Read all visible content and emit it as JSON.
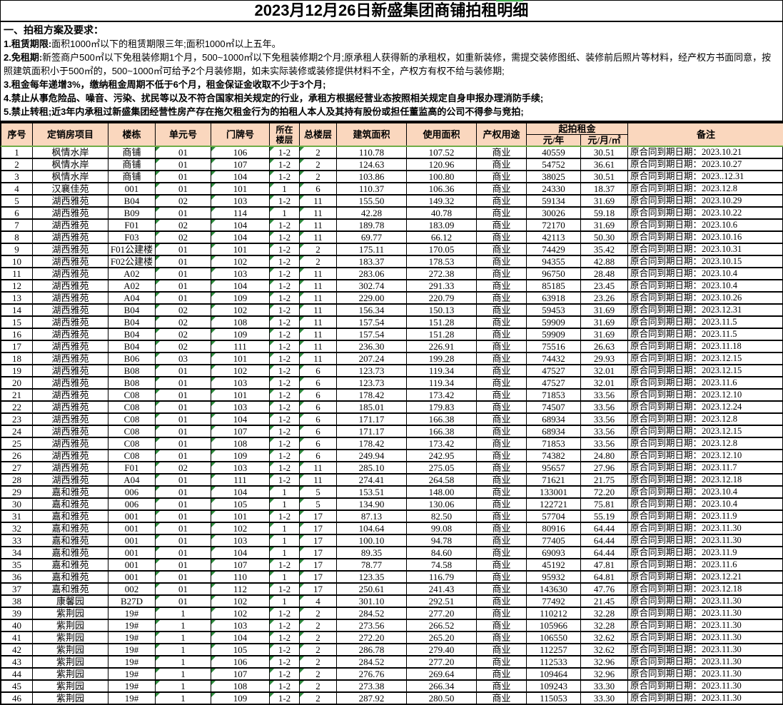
{
  "title": "2023月12月26日新盛集团商铺拍租明细",
  "notes": {
    "heading": "一、拍租方案及要求：",
    "items": [
      {
        "bold": "1.租赁期限:",
        "text": "面积1000㎡以下的租赁期限三年;面积1000㎡以上五年。"
      },
      {
        "bold": "2.免租期:",
        "text": "新签商户500㎡以下免租装修期1个月，500~1000㎡以下免租装修期2个月;原承租人获得新的承租权，如重新装修，需提交装修图纸、装修前后照片等材料，经产权方书面同意，按照建筑面积小于500㎡的，500~1000㎡可给予2个月装修期，如未实际装修或装修提供材料不全，产权方有权不给与装修期;"
      },
      {
        "bold": "3.租金每年递增3%，缴纳租金周期不低于6个月，租金保证金收取不少于3个月;",
        "text": ""
      },
      {
        "bold": "4.禁止从事危险品、噪音、污染、扰民等以及不符合国家相关规定的行业，承租方根据经营业态按照相关规定自身申报办理消防手续;",
        "text": ""
      },
      {
        "bold": "5.禁止转租;近3年内承租过新盛集团经营性房产存在拖欠租金行为的拍租人本人及其持有股份或担任董监高的公司不得参与竞拍;",
        "text": ""
      }
    ]
  },
  "table": {
    "group_header": "起拍租金",
    "columns": [
      "序号",
      "定销房项目",
      "楼栋",
      "单元号",
      "门牌号",
      "所在楼层",
      "总楼层",
      "建筑面积",
      "使用面积",
      "产权用途",
      "元/年",
      "元/月/㎡",
      "备注"
    ],
    "col_keys": [
      "index",
      "project",
      "building",
      "unit",
      "door",
      "floor",
      "total-floors",
      "build-area",
      "usable-area",
      "property-use",
      "rent-per-year",
      "rent-per-month-sqm",
      "remark"
    ],
    "rows": [
      [
        "1",
        "枫情水岸",
        "商铺",
        "01",
        "106",
        "1-2",
        "2",
        "110.78",
        "107.52",
        "商业",
        "40559",
        "30.51",
        "原合同到期日期：2023.10.21"
      ],
      [
        "2",
        "枫情水岸",
        "商铺",
        "01",
        "107",
        "1-2",
        "2",
        "124.63",
        "120.96",
        "商业",
        "54752",
        "36.61",
        "原合同到期日期：2023.10.27"
      ],
      [
        "3",
        "枫情水岸",
        "商铺",
        "01",
        "104",
        "1-2",
        "2",
        "103.86",
        "100.80",
        "商业",
        "38025",
        "30.51",
        "原合同到期日期：2023..12.31"
      ],
      [
        "4",
        "汉襄佳苑",
        "001",
        "01",
        "101",
        "1",
        "6",
        "110.37",
        "106.36",
        "商业",
        "24330",
        "18.37",
        "原合同到期日期：2023.12.8"
      ],
      [
        "5",
        "湖西雅苑",
        "B04",
        "02",
        "103",
        "1-2",
        "11",
        "155.50",
        "149.32",
        "商业",
        "59134",
        "31.69",
        "原合同到期日期：2023.10.29"
      ],
      [
        "6",
        "湖西雅苑",
        "B09",
        "01",
        "114",
        "1",
        "11",
        "42.28",
        "40.78",
        "商业",
        "30026",
        "59.18",
        "原合同到期日期：2023.10.22"
      ],
      [
        "7",
        "湖西雅苑",
        "F01",
        "02",
        "104",
        "1-2",
        "11",
        "189.78",
        "183.09",
        "商业",
        "72170",
        "31.69",
        "原合同到期日期：2023.10.6"
      ],
      [
        "8",
        "湖西雅苑",
        "F03",
        "02",
        "104",
        "1-2",
        "11",
        "69.77",
        "66.12",
        "商业",
        "42113",
        "50.30",
        "原合同到期日期：2023.10.16"
      ],
      [
        "9",
        "湖西雅苑",
        "F01公建楼",
        "01",
        "101",
        "1-2",
        "2",
        "175.11",
        "170.05",
        "商业",
        "74429",
        "35.42",
        "原合同到期日期：2023.10.31"
      ],
      [
        "10",
        "湖西雅苑",
        "F02公建楼",
        "01",
        "102",
        "1-2",
        "2",
        "183.37",
        "178.53",
        "商业",
        "94355",
        "42.88",
        "原合同到期日期：2023.10.15"
      ],
      [
        "11",
        "湖西雅苑",
        "A02",
        "01",
        "103",
        "1-2",
        "11",
        "283.06",
        "272.38",
        "商业",
        "96750",
        "28.48",
        "原合同到期日期：2023.10.4"
      ],
      [
        "12",
        "湖西雅苑",
        "A02",
        "01",
        "104",
        "1-2",
        "11",
        "302.74",
        "291.33",
        "商业",
        "85185",
        "23.45",
        "原合同到期日期：2023.10.4"
      ],
      [
        "13",
        "湖西雅苑",
        "A04",
        "01",
        "109",
        "1-2",
        "11",
        "229.00",
        "220.79",
        "商业",
        "63918",
        "23.26",
        "原合同到期日期：2023.10.26"
      ],
      [
        "14",
        "湖西雅苑",
        "B04",
        "02",
        "102",
        "1-2",
        "11",
        "156.34",
        "150.13",
        "商业",
        "59453",
        "31.69",
        "原合同到期日期：2023.12.31"
      ],
      [
        "15",
        "湖西雅苑",
        "B04",
        "02",
        "108",
        "1-2",
        "11",
        "157.54",
        "151.28",
        "商业",
        "59909",
        "31.69",
        "原合同到期日期：2023.11.5"
      ],
      [
        "16",
        "湖西雅苑",
        "B04",
        "02",
        "109",
        "1-2",
        "11",
        "157.54",
        "151.28",
        "商业",
        "59909",
        "31.69",
        "原合同到期日期：2023.11.5"
      ],
      [
        "17",
        "湖西雅苑",
        "B04",
        "02",
        "111",
        "1-2",
        "11",
        "236.30",
        "226.91",
        "商业",
        "75516",
        "26.63",
        "原合同到期日期：2023.11.18"
      ],
      [
        "18",
        "湖西雅苑",
        "B06",
        "03",
        "101",
        "1-2",
        "11",
        "207.24",
        "199.28",
        "商业",
        "74432",
        "29.93",
        "原合同到期日期：2023.12.15"
      ],
      [
        "19",
        "湖西雅苑",
        "B08",
        "01",
        "102",
        "1-2",
        "6",
        "123.73",
        "119.34",
        "商业",
        "47527",
        "32.01",
        "原合同到期日期：2023.12.15"
      ],
      [
        "20",
        "湖西雅苑",
        "B08",
        "01",
        "103",
        "1-2",
        "6",
        "123.73",
        "119.34",
        "商业",
        "47527",
        "32.01",
        "原合同到期日期：2023.11.6"
      ],
      [
        "21",
        "湖西雅苑",
        "C08",
        "01",
        "101",
        "1-2",
        "6",
        "178.42",
        "173.42",
        "商业",
        "71853",
        "33.56",
        "原合同到期日期：2023.12.10"
      ],
      [
        "22",
        "湖西雅苑",
        "C08",
        "01",
        "103",
        "1-2",
        "6",
        "185.01",
        "179.83",
        "商业",
        "74507",
        "33.56",
        "原合同到期日期：2023.12.24"
      ],
      [
        "23",
        "湖西雅苑",
        "C08",
        "01",
        "104",
        "1-2",
        "6",
        "171.17",
        "166.38",
        "商业",
        "68934",
        "33.56",
        "原合同到期日期：2023.12.8"
      ],
      [
        "24",
        "湖西雅苑",
        "C08",
        "01",
        "107",
        "1-2",
        "6",
        "171.17",
        "166.38",
        "商业",
        "68934",
        "33.56",
        "原合同到期日期：2023.12.15"
      ],
      [
        "25",
        "湖西雅苑",
        "C08",
        "01",
        "108",
        "1-2",
        "6",
        "178.42",
        "173.42",
        "商业",
        "71853",
        "33.56",
        "原合同到期日期：2023.12.8"
      ],
      [
        "26",
        "湖西雅苑",
        "C08",
        "01",
        "109",
        "1-2",
        "6",
        "249.94",
        "242.95",
        "商业",
        "74382",
        "24.80",
        "原合同到期日期：2023.12.10"
      ],
      [
        "27",
        "湖西雅苑",
        "F01",
        "02",
        "103",
        "1-2",
        "11",
        "285.10",
        "275.05",
        "商业",
        "95657",
        "27.96",
        "原合同到期日期：2023.11.7"
      ],
      [
        "28",
        "湖西雅苑",
        "A04",
        "01",
        "111",
        "1-2",
        "11",
        "274.41",
        "264.58",
        "商业",
        "71621",
        "21.75",
        "原合同到期日期：2023.12.18"
      ],
      [
        "29",
        "嘉和雅苑",
        "006",
        "01",
        "104",
        "1",
        "5",
        "153.51",
        "148.00",
        "商业",
        "133001",
        "72.20",
        "原合同到期日期：2023.10.4"
      ],
      [
        "30",
        "嘉和雅苑",
        "006",
        "01",
        "105",
        "1",
        "5",
        "134.90",
        "130.06",
        "商业",
        "122721",
        "75.81",
        "原合同到期日期：2023.10.4"
      ],
      [
        "31",
        "嘉和雅苑",
        "001",
        "01",
        "101",
        "1-2",
        "17",
        "87.13",
        "82.50",
        "商业",
        "57704",
        "55.19",
        "原合同到期日期：2023.11.9"
      ],
      [
        "32",
        "嘉和雅苑",
        "001",
        "01",
        "102",
        "1",
        "17",
        "104.64",
        "99.08",
        "商业",
        "80916",
        "64.44",
        "原合同到期日期：2023.11.30"
      ],
      [
        "33",
        "嘉和雅苑",
        "001",
        "01",
        "103",
        "1",
        "17",
        "100.10",
        "94.78",
        "商业",
        "77405",
        "64.44",
        "原合同到期日期：2023.11.30"
      ],
      [
        "34",
        "嘉和雅苑",
        "001",
        "01",
        "104",
        "1",
        "17",
        "89.35",
        "84.60",
        "商业",
        "69093",
        "64.44",
        "原合同到期日期：2023.11.9"
      ],
      [
        "35",
        "嘉和雅苑",
        "001",
        "01",
        "107",
        "1-2",
        "17",
        "78.77",
        "74.58",
        "商业",
        "45192",
        "47.81",
        "原合同到期日期：2023.11.6"
      ],
      [
        "36",
        "嘉和雅苑",
        "001",
        "01",
        "110",
        "1",
        "17",
        "123.35",
        "116.79",
        "商业",
        "95932",
        "64.81",
        "原合同到期日期：2023.12.21"
      ],
      [
        "37",
        "嘉和雅苑",
        "002",
        "01",
        "112",
        "1-2",
        "17",
        "250.61",
        "241.43",
        "商业",
        "143630",
        "47.76",
        "原合同到期日期：2023.12.18"
      ],
      [
        "38",
        "康馨园",
        "B27D",
        "01",
        "102",
        "1",
        "4",
        "301.10",
        "292.51",
        "商业",
        "77492",
        "21.45",
        "原合同到期日期：2023.11.30"
      ],
      [
        "39",
        "紫荆园",
        "19#",
        "1",
        "102",
        "1-2",
        "2",
        "284.52",
        "277.20",
        "商业",
        "110212",
        "32.28",
        "原合同到期日期：2023.11.30"
      ],
      [
        "40",
        "紫荆园",
        "19#",
        "1",
        "103",
        "1-2",
        "2",
        "273.56",
        "266.52",
        "商业",
        "105966",
        "32.28",
        "原合同到期日期：2023.11.30"
      ],
      [
        "41",
        "紫荆园",
        "19#",
        "1",
        "104",
        "1-2",
        "2",
        "272.20",
        "265.20",
        "商业",
        "106550",
        "32.62",
        "原合同到期日期：2023.11.30"
      ],
      [
        "42",
        "紫荆园",
        "19#",
        "1",
        "105",
        "1-2",
        "2",
        "286.78",
        "279.40",
        "商业",
        "112257",
        "32.62",
        "原合同到期日期：2023.11.30"
      ],
      [
        "43",
        "紫荆园",
        "19#",
        "1",
        "106",
        "1-2",
        "2",
        "284.52",
        "277.20",
        "商业",
        "112533",
        "32.96",
        "原合同到期日期：2023.11.30"
      ],
      [
        "44",
        "紫荆园",
        "19#",
        "1",
        "107",
        "1-2",
        "2",
        "276.76",
        "269.64",
        "商业",
        "109464",
        "32.96",
        "原合同到期日期：2023.11.30"
      ],
      [
        "45",
        "紫荆园",
        "19#",
        "1",
        "108",
        "1-2",
        "2",
        "273.38",
        "266.34",
        "商业",
        "109243",
        "33.30",
        "原合同到期日期：2023.11.30"
      ],
      [
        "46",
        "紫荆园",
        "19#",
        "1",
        "109",
        "1-2",
        "2",
        "287.92",
        "280.50",
        "商业",
        "115053",
        "33.30",
        "原合同到期日期：2023.11.30"
      ]
    ]
  },
  "colors": {
    "header_bg": "#FAD7BE",
    "header_separator_green": "#70AD47",
    "error_triangle_green": "#2E8B3D",
    "top_tick_green": "#3DA648"
  }
}
